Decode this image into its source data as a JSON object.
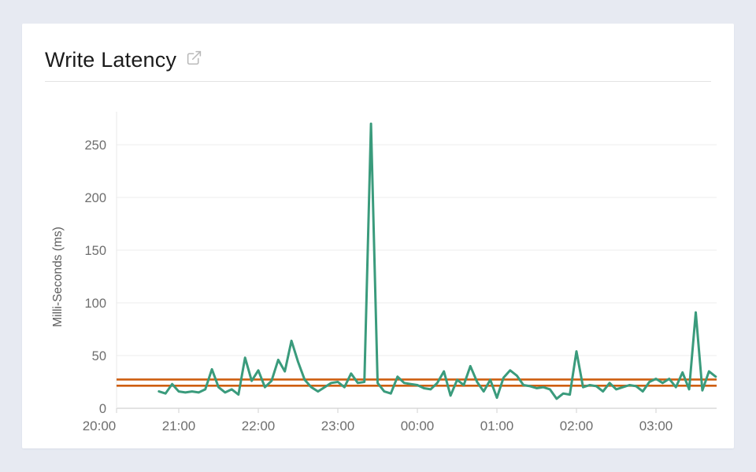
{
  "card": {
    "title": "Write Latency"
  },
  "colors": {
    "page_background": "#e7eaf2",
    "card_background": "#ffffff",
    "series_green": "#3A9B7C",
    "reference_orange": "#CE5E10",
    "gridline": "#ececec",
    "axis_line": "#d2d2d2",
    "tick_label": "#6e6e6e"
  },
  "chart_data": {
    "type": "line",
    "title": "Write Latency",
    "xlabel": "",
    "ylabel": "Milli-Seconds (ms)",
    "ylim": [
      0,
      275
    ],
    "y_ticks": [
      0,
      50,
      100,
      150,
      200,
      250
    ],
    "x_tick_labels": [
      "20:00",
      "21:00",
      "22:00",
      "23:00",
      "00:00",
      "01:00",
      "02:00",
      "03:00"
    ],
    "grid": "horizontal",
    "legend": "none",
    "reference_lines": [
      {
        "name": "upper-threshold",
        "value": 27.3,
        "color": "#CE5E10"
      },
      {
        "name": "lower-threshold",
        "value": 21.4,
        "color": "#CE5E10"
      }
    ],
    "series": [
      {
        "name": "write-latency-ms",
        "color": "#3A9B7C",
        "x_times": [
          "20:45",
          "20:50",
          "20:55",
          "21:00",
          "21:05",
          "21:10",
          "21:15",
          "21:20",
          "21:25",
          "21:30",
          "21:35",
          "21:40",
          "21:45",
          "21:50",
          "21:55",
          "22:00",
          "22:05",
          "22:10",
          "22:15",
          "22:20",
          "22:25",
          "22:30",
          "22:35",
          "22:40",
          "22:45",
          "22:50",
          "22:55",
          "23:00",
          "23:05",
          "23:10",
          "23:15",
          "23:20",
          "23:25",
          "23:30",
          "23:35",
          "23:40",
          "23:45",
          "23:50",
          "23:55",
          "00:00",
          "00:05",
          "00:10",
          "00:15",
          "00:20",
          "00:25",
          "00:30",
          "00:35",
          "00:40",
          "00:45",
          "00:50",
          "00:55",
          "01:00",
          "01:05",
          "01:10",
          "01:15",
          "01:20",
          "01:25",
          "01:30",
          "01:35",
          "01:40",
          "01:45",
          "01:50",
          "01:55",
          "02:00",
          "02:05",
          "02:10",
          "02:15",
          "02:20",
          "02:25",
          "02:30",
          "02:35",
          "02:40",
          "02:45",
          "02:50",
          "02:55",
          "03:00",
          "03:05",
          "03:10",
          "03:15",
          "03:20",
          "03:25",
          "03:30",
          "03:35",
          "03:40",
          "03:45"
        ],
        "values": [
          16,
          14,
          23,
          16,
          15,
          16,
          15,
          18,
          37,
          20,
          15,
          18,
          13,
          48,
          26,
          36,
          20,
          26,
          46,
          35,
          64,
          44,
          27,
          20,
          16,
          20,
          24,
          25,
          20,
          33,
          24,
          25,
          270,
          24,
          16,
          14,
          30,
          24,
          23,
          22,
          19,
          18,
          24,
          35,
          12,
          27,
          22,
          40,
          25,
          16,
          27,
          10,
          29,
          36,
          31,
          22,
          21,
          19,
          20,
          18,
          9,
          14,
          13,
          54,
          20,
          22,
          21,
          16,
          24,
          18,
          20,
          22,
          21,
          16,
          25,
          28,
          24,
          28,
          20,
          34,
          18,
          91,
          17,
          35,
          30
        ]
      }
    ]
  }
}
